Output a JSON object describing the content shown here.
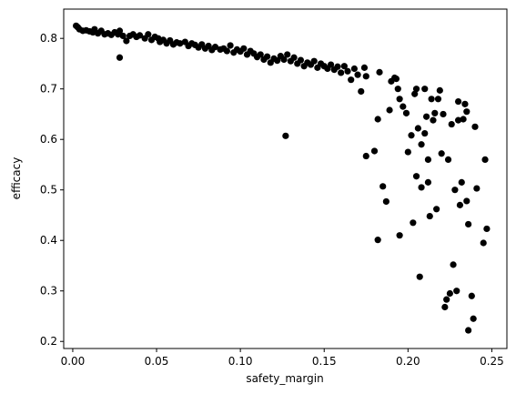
{
  "chart_data": {
    "type": "scatter",
    "xlabel": "safety_margin",
    "ylabel": "efficacy",
    "color": "#000000",
    "x": [
      0.002,
      0.003,
      0.004,
      0.006,
      0.008,
      0.01,
      0.012,
      0.013,
      0.015,
      0.017,
      0.019,
      0.021,
      0.023,
      0.025,
      0.027,
      0.028,
      0.03,
      0.032,
      0.034,
      0.036,
      0.038,
      0.04,
      0.043,
      0.045,
      0.047,
      0.049,
      0.051,
      0.052,
      0.054,
      0.056,
      0.058,
      0.06,
      0.062,
      0.064,
      0.067,
      0.069,
      0.071,
      0.073,
      0.075,
      0.077,
      0.079,
      0.081,
      0.083,
      0.085,
      0.088,
      0.09,
      0.092,
      0.094,
      0.096,
      0.098,
      0.1,
      0.102,
      0.104,
      0.106,
      0.108,
      0.11,
      0.112,
      0.114,
      0.116,
      0.118,
      0.12,
      0.122,
      0.124,
      0.126,
      0.128,
      0.13,
      0.132,
      0.134,
      0.136,
      0.138,
      0.14,
      0.142,
      0.144,
      0.146,
      0.148,
      0.15,
      0.152,
      0.154,
      0.156,
      0.158,
      0.16,
      0.162,
      0.164,
      0.166,
      0.168,
      0.17,
      0.172,
      0.174,
      0.175,
      0.028,
      0.127,
      0.175,
      0.18,
      0.182,
      0.183,
      0.185,
      0.187,
      0.189,
      0.19,
      0.182,
      0.192,
      0.193,
      0.194,
      0.195,
      0.195,
      0.197,
      0.199,
      0.2,
      0.202,
      0.203,
      0.204,
      0.205,
      0.205,
      0.206,
      0.207,
      0.208,
      0.208,
      0.21,
      0.21,
      0.211,
      0.212,
      0.212,
      0.213,
      0.214,
      0.215,
      0.216,
      0.217,
      0.218,
      0.219,
      0.22,
      0.221,
      0.222,
      0.223,
      0.224,
      0.225,
      0.226,
      0.227,
      0.228,
      0.229,
      0.23,
      0.23,
      0.231,
      0.232,
      0.233,
      0.234,
      0.235,
      0.235,
      0.236,
      0.236,
      0.238,
      0.239,
      0.24,
      0.241,
      0.245,
      0.246,
      0.247
    ],
    "values": [
      0.825,
      0.822,
      0.818,
      0.815,
      0.816,
      0.814,
      0.812,
      0.818,
      0.81,
      0.815,
      0.808,
      0.81,
      0.807,
      0.812,
      0.808,
      0.815,
      0.805,
      0.795,
      0.805,
      0.808,
      0.803,
      0.806,
      0.8,
      0.808,
      0.797,
      0.803,
      0.8,
      0.793,
      0.797,
      0.79,
      0.796,
      0.788,
      0.792,
      0.79,
      0.793,
      0.785,
      0.79,
      0.787,
      0.782,
      0.788,
      0.78,
      0.785,
      0.777,
      0.783,
      0.778,
      0.78,
      0.775,
      0.786,
      0.772,
      0.778,
      0.774,
      0.78,
      0.768,
      0.775,
      0.77,
      0.763,
      0.768,
      0.758,
      0.764,
      0.752,
      0.76,
      0.756,
      0.765,
      0.758,
      0.768,
      0.755,
      0.762,
      0.75,
      0.757,
      0.745,
      0.752,
      0.748,
      0.755,
      0.742,
      0.75,
      0.745,
      0.74,
      0.748,
      0.738,
      0.744,
      0.732,
      0.745,
      0.735,
      0.718,
      0.74,
      0.728,
      0.695,
      0.742,
      0.725,
      0.762,
      0.607,
      0.567,
      0.577,
      0.64,
      0.733,
      0.507,
      0.477,
      0.658,
      0.715,
      0.401,
      0.722,
      0.72,
      0.7,
      0.68,
      0.41,
      0.665,
      0.652,
      0.575,
      0.608,
      0.435,
      0.69,
      0.7,
      0.527,
      0.622,
      0.328,
      0.59,
      0.505,
      0.612,
      0.7,
      0.645,
      0.56,
      0.515,
      0.448,
      0.68,
      0.638,
      0.652,
      0.462,
      0.68,
      0.697,
      0.572,
      0.65,
      0.268,
      0.283,
      0.56,
      0.295,
      0.63,
      0.352,
      0.5,
      0.3,
      0.675,
      0.638,
      0.47,
      0.515,
      0.64,
      0.67,
      0.655,
      0.478,
      0.432,
      0.222,
      0.29,
      0.245,
      0.625,
      0.503,
      0.395,
      0.56,
      0.423
    ],
    "xlim": [
      -0.0054,
      0.259
    ],
    "ylim": [
      0.186,
      0.858
    ],
    "xticks": [
      {
        "value": 0,
        "label": "0.00"
      },
      0.05,
      {
        "value": 0.1,
        "label": "0.10"
      },
      0.15,
      {
        "value": 0.2,
        "label": "0.20"
      },
      0.25
    ],
    "yticks": [
      0.2,
      0.3,
      0.4,
      0.5,
      0.6,
      0.7,
      0.8
    ]
  }
}
